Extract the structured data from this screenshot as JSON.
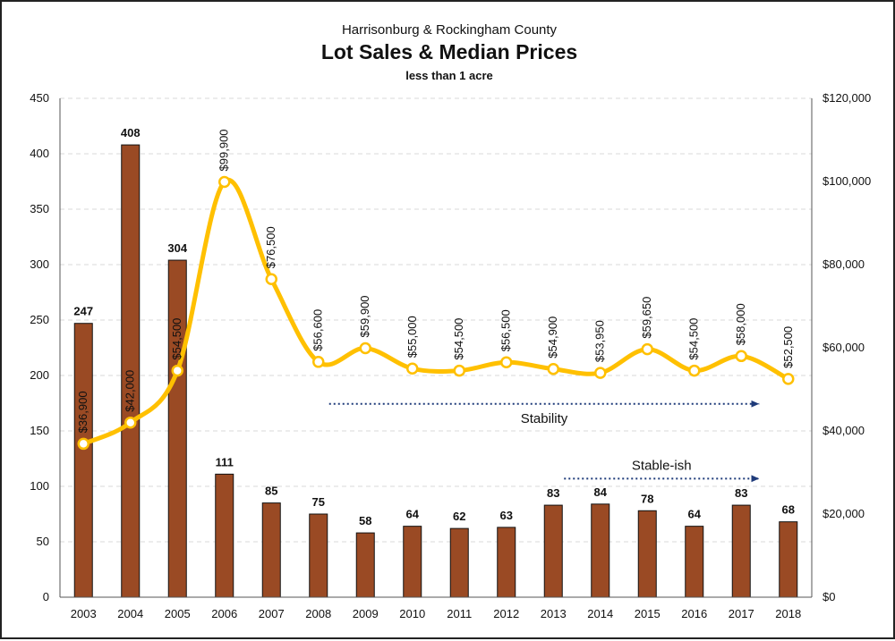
{
  "chart_data": {
    "type": "bar",
    "title_top": "Harrisonburg & Rockingham County",
    "title": "Lot Sales & Median Prices",
    "subtitle": "less than 1 acre",
    "categories": [
      "2003",
      "2004",
      "2005",
      "2006",
      "2007",
      "2008",
      "2009",
      "2010",
      "2011",
      "2012",
      "2013",
      "2014",
      "2015",
      "2016",
      "2017",
      "2018"
    ],
    "series": [
      {
        "kind": "bar",
        "axis": "left",
        "color": "#9a4a24",
        "values": [
          247,
          408,
          304,
          111,
          85,
          75,
          58,
          64,
          62,
          63,
          83,
          84,
          78,
          64,
          83,
          68
        ]
      },
      {
        "kind": "line",
        "axis": "right",
        "color": "#ffc000",
        "values": [
          36900,
          42000,
          54500,
          99900,
          76500,
          56600,
          59900,
          55000,
          54500,
          56500,
          54900,
          53950,
          59650,
          54500,
          58000,
          52500
        ],
        "labels": [
          "$36,900",
          "$42,000",
          "$54,500",
          "$99,900",
          "$76,500",
          "$56,600",
          "$59,900",
          "$55,000",
          "$54,500",
          "$56,500",
          "$54,900",
          "$53,950",
          "$59,650",
          "$54,500",
          "$58,000",
          "$52,500"
        ]
      }
    ],
    "y_left": {
      "min": 0,
      "max": 450,
      "ticks": [
        "0",
        "50",
        "100",
        "150",
        "200",
        "250",
        "300",
        "350",
        "400",
        "450"
      ]
    },
    "y_right": {
      "min": 0,
      "max": 120000,
      "ticks": [
        "$0",
        "$20,000",
        "$40,000",
        "$60,000",
        "$80,000",
        "$100,000",
        "$120,000"
      ]
    },
    "grid": true,
    "legend": "none",
    "annotations": [
      {
        "text": "Stability",
        "from_category": "2008",
        "to_category": "2017",
        "axis": "right",
        "value": 46500
      },
      {
        "text": "Stable-ish",
        "from_category": "2013",
        "to_category": "2017",
        "axis": "left",
        "value": 107
      }
    ]
  }
}
